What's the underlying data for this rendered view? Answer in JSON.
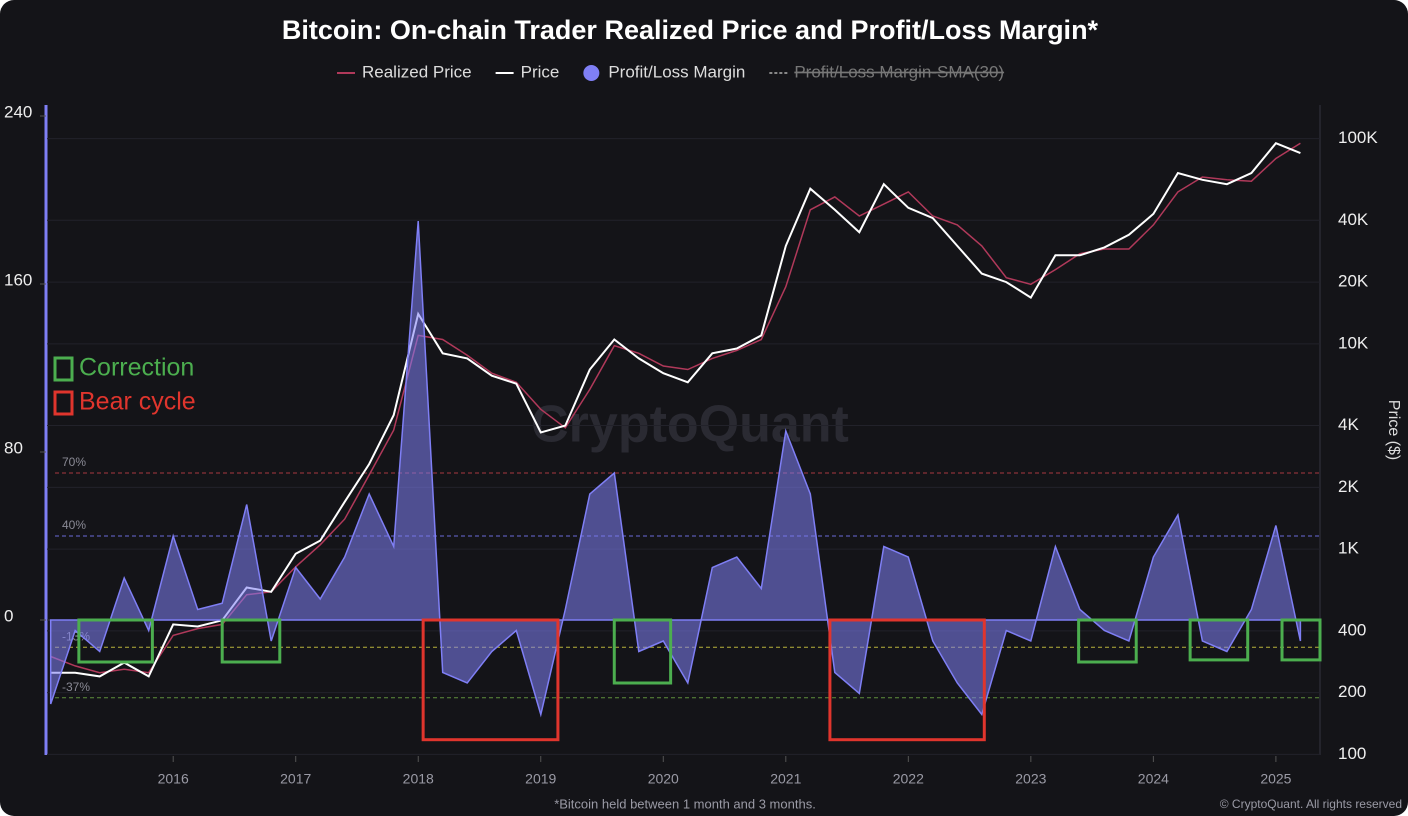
{
  "chart_data": {
    "type": "line",
    "title": "Bitcoin: On-chain Trader Realized Price and Profit/Loss Margin*",
    "footnote": "*Bitcoin held between 1 month and 3 months.",
    "credit": "© CryptoQuant. All rights reserved",
    "watermark": "CryptoQuant",
    "y2_label": "Price ($)",
    "x": [
      2015.0,
      2015.2,
      2015.4,
      2015.6,
      2015.8,
      2016.0,
      2016.2,
      2016.4,
      2016.6,
      2016.8,
      2017.0,
      2017.2,
      2017.4,
      2017.6,
      2017.8,
      2018.0,
      2018.2,
      2018.4,
      2018.6,
      2018.8,
      2019.0,
      2019.2,
      2019.4,
      2019.6,
      2019.8,
      2020.0,
      2020.2,
      2020.4,
      2020.6,
      2020.8,
      2021.0,
      2021.2,
      2021.4,
      2021.6,
      2021.8,
      2022.0,
      2022.2,
      2022.4,
      2022.6,
      2022.8,
      2023.0,
      2023.2,
      2023.4,
      2023.6,
      2023.8,
      2024.0,
      2024.2,
      2024.4,
      2024.6,
      2024.8,
      2025.0,
      2025.2
    ],
    "xlim": [
      2014.97,
      2025.36
    ],
    "xticks": [
      2016,
      2017,
      2018,
      2019,
      2020,
      2021,
      2022,
      2023,
      2024,
      2025
    ],
    "ylim": [
      -64,
      245
    ],
    "yticks": [
      0,
      80,
      160,
      240
    ],
    "y2lim": [
      100,
      145000
    ],
    "y2log": true,
    "y2ticks": [
      100,
      200,
      400,
      {
        "value": 1000,
        "label": "1K"
      },
      {
        "value": 2000,
        "label": "2K"
      },
      {
        "value": 4000,
        "label": "4K"
      },
      {
        "value": 10000,
        "label": "10K"
      },
      {
        "value": 20000,
        "label": "20K"
      },
      {
        "value": 40000,
        "label": "40K"
      },
      {
        "value": 100000,
        "label": "100K"
      }
    ],
    "series": [
      {
        "name": "Realized Price",
        "color": "#b0395a",
        "axis": "y2",
        "style": "line",
        "values": [
          300,
          270,
          250,
          260,
          250,
          380,
          410,
          430,
          600,
          620,
          820,
          1050,
          1400,
          2300,
          3800,
          11000,
          10500,
          8800,
          7200,
          6500,
          4800,
          3900,
          6000,
          9800,
          9000,
          7800,
          7500,
          8500,
          9300,
          10500,
          19000,
          45000,
          52000,
          42000,
          48000,
          55000,
          42000,
          38000,
          30000,
          21000,
          19500,
          23000,
          27500,
          29000,
          29000,
          38000,
          55000,
          65000,
          63000,
          62000,
          80000,
          95000
        ]
      },
      {
        "name": "Price",
        "color": "#ffffff",
        "axis": "y2",
        "style": "line",
        "values": [
          250,
          250,
          240,
          280,
          240,
          430,
          420,
          450,
          650,
          620,
          950,
          1100,
          1700,
          2600,
          4500,
          14000,
          9000,
          8500,
          7000,
          6400,
          3700,
          4000,
          7500,
          10500,
          8500,
          7200,
          6500,
          9000,
          9500,
          11000,
          30000,
          57000,
          45000,
          35000,
          60000,
          46000,
          41000,
          30000,
          22000,
          20000,
          16800,
          27000,
          27000,
          29500,
          34000,
          43000,
          68000,
          63000,
          60000,
          68000,
          95000,
          85000
        ]
      },
      {
        "name": "Profit/Loss Margin",
        "color": "#7f7ff5",
        "style": "area",
        "values": [
          -40,
          -5,
          -15,
          20,
          -5,
          40,
          5,
          8,
          55,
          -10,
          25,
          10,
          30,
          60,
          35,
          190,
          -25,
          -30,
          -15,
          -5,
          -45,
          5,
          60,
          70,
          -15,
          -10,
          -30,
          25,
          30,
          15,
          90,
          60,
          -25,
          -35,
          35,
          30,
          -10,
          -30,
          -45,
          -5,
          -10,
          35,
          5,
          -5,
          -10,
          30,
          50,
          -10,
          -15,
          5,
          45,
          -10
        ]
      },
      {
        "name": "Profit/Loss Margin-SMA(30)",
        "color": "#888888",
        "style": "line",
        "hidden": true
      }
    ],
    "reference_lines": [
      {
        "value": 70,
        "label": "70%",
        "color": "#a8383f"
      },
      {
        "value": 40,
        "label": "40%",
        "color": "#6a6ad8"
      },
      {
        "value": -13,
        "label": "-13%",
        "color": "#b8b23a"
      },
      {
        "value": -37,
        "label": "-37%",
        "color": "#5f8f3c"
      }
    ],
    "highlights": [
      {
        "label": "Correction",
        "color": "#4cae4f",
        "periods": [
          [
            2015.23,
            2015.83,
            -20,
            0
          ],
          [
            2016.4,
            2016.87,
            -20,
            0
          ],
          [
            2019.6,
            2020.06,
            -30,
            0
          ],
          [
            2023.39,
            2023.86,
            -20,
            0
          ],
          [
            2024.3,
            2024.77,
            -19,
            0
          ],
          [
            2025.05,
            2025.36,
            -19,
            0
          ]
        ]
      },
      {
        "label": "Bear cycle",
        "color": "#e0352d",
        "periods": [
          [
            2018.04,
            2019.14,
            -57,
            0
          ],
          [
            2021.36,
            2022.62,
            -57,
            0
          ]
        ]
      }
    ]
  }
}
